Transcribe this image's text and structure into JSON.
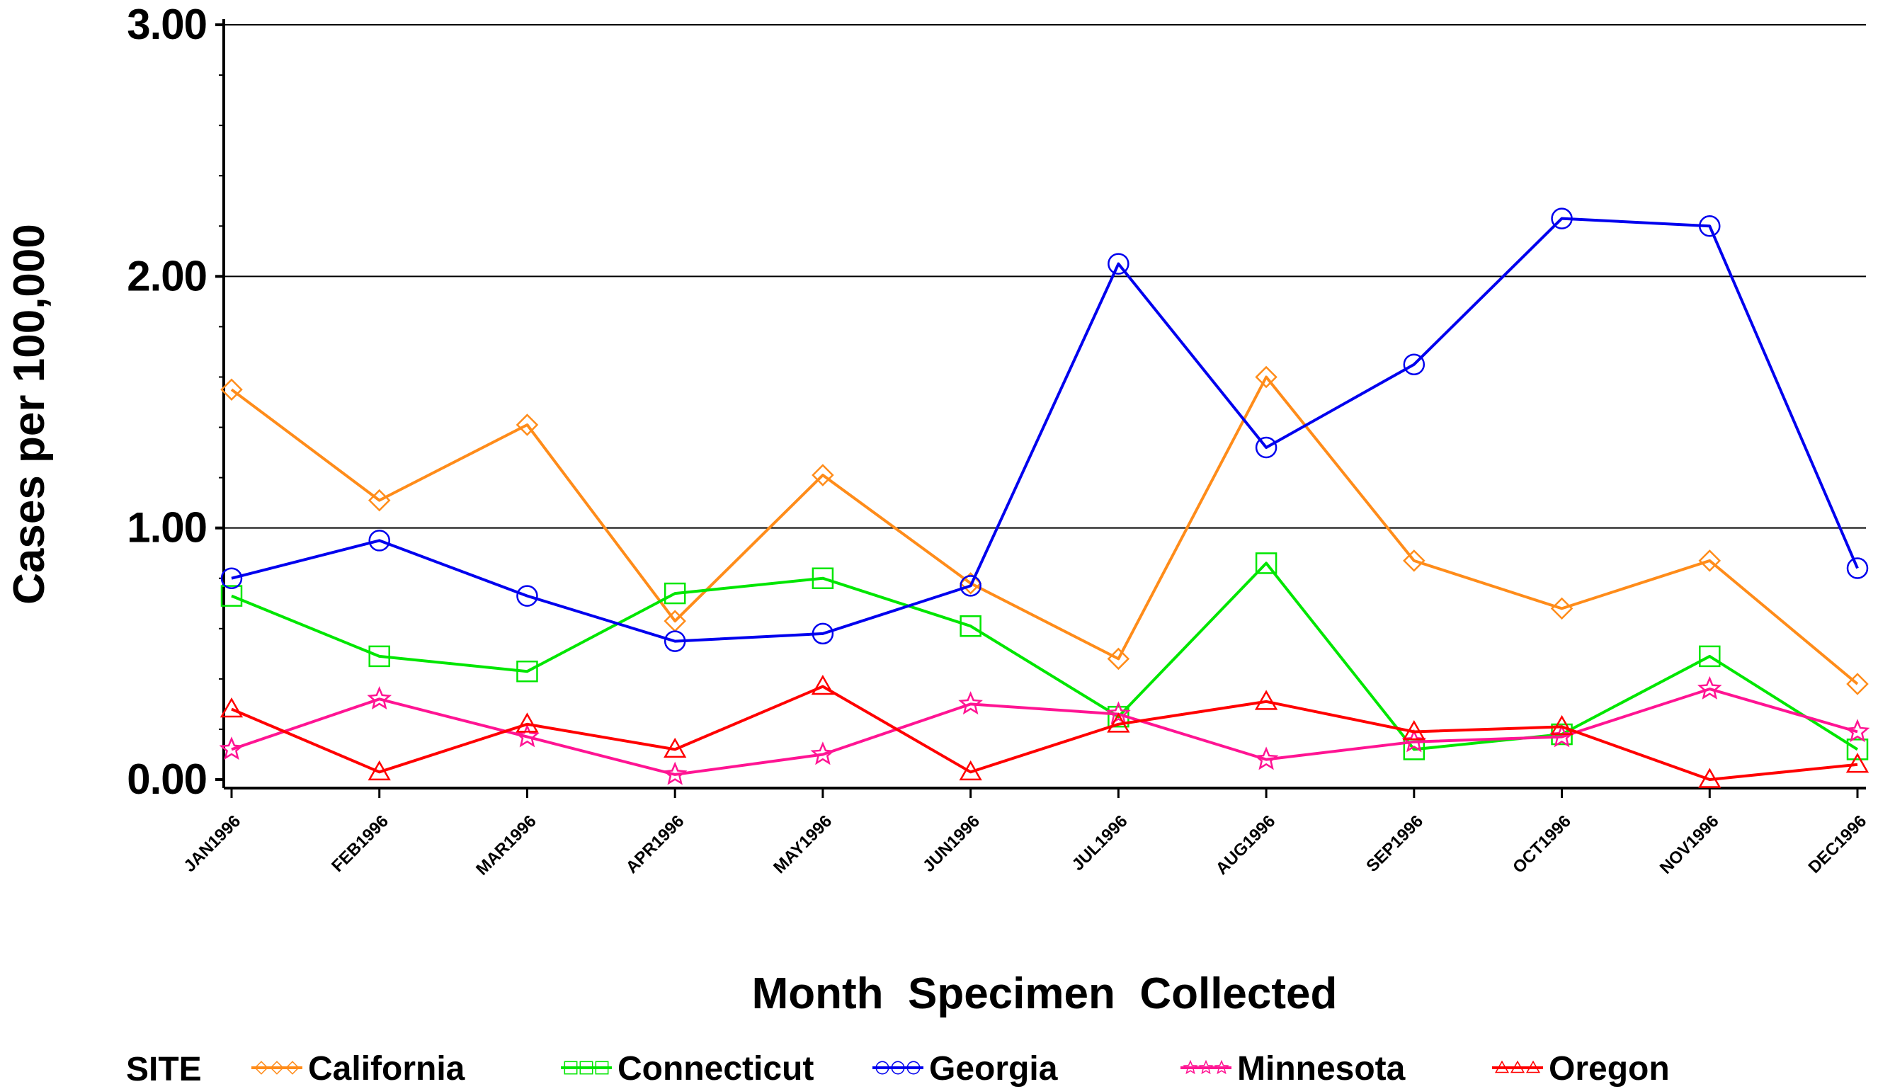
{
  "chart_data": {
    "type": "line",
    "xlabel": "Month  Specimen  Collected",
    "ylabel": "Cases  per  100,000",
    "ylim": [
      0,
      3
    ],
    "yticks": [
      "0.00",
      "1.00",
      "2.00",
      "3.00"
    ],
    "categories": [
      "JAN1996",
      "FEB1996",
      "MAR1996",
      "APR1996",
      "MAY1996",
      "JUN1996",
      "JUL1996",
      "AUG1996",
      "SEP1996",
      "OCT1996",
      "NOV1996",
      "DEC1996"
    ],
    "grid": "horizontal at major ticks",
    "legend": {
      "title": "SITE",
      "placement": "bottom"
    },
    "series": [
      {
        "name": "California",
        "color": "#ff8c1a",
        "marker": "diamond",
        "values": [
          1.55,
          1.11,
          1.41,
          0.63,
          1.21,
          0.78,
          0.48,
          1.6,
          0.87,
          0.68,
          0.87,
          0.38
        ]
      },
      {
        "name": "Connecticut",
        "color": "#00e600",
        "marker": "square",
        "values": [
          0.73,
          0.49,
          0.43,
          0.74,
          0.8,
          0.61,
          0.25,
          0.86,
          0.12,
          0.18,
          0.49,
          0.12
        ]
      },
      {
        "name": "Georgia",
        "color": "#0000ee",
        "marker": "circle",
        "values": [
          0.8,
          0.95,
          0.73,
          0.55,
          0.58,
          0.77,
          2.05,
          1.32,
          1.65,
          2.23,
          2.2,
          0.84
        ]
      },
      {
        "name": "Minnesota",
        "color": "#ff1493",
        "marker": "star",
        "values": [
          0.12,
          0.32,
          0.17,
          0.02,
          0.1,
          0.3,
          0.26,
          0.08,
          0.15,
          0.17,
          0.36,
          0.19
        ]
      },
      {
        "name": "Oregon",
        "color": "#ff0000",
        "marker": "triangle",
        "values": [
          0.28,
          0.03,
          0.22,
          0.12,
          0.37,
          0.03,
          0.22,
          0.31,
          0.19,
          0.21,
          0.0,
          0.06
        ]
      }
    ]
  }
}
